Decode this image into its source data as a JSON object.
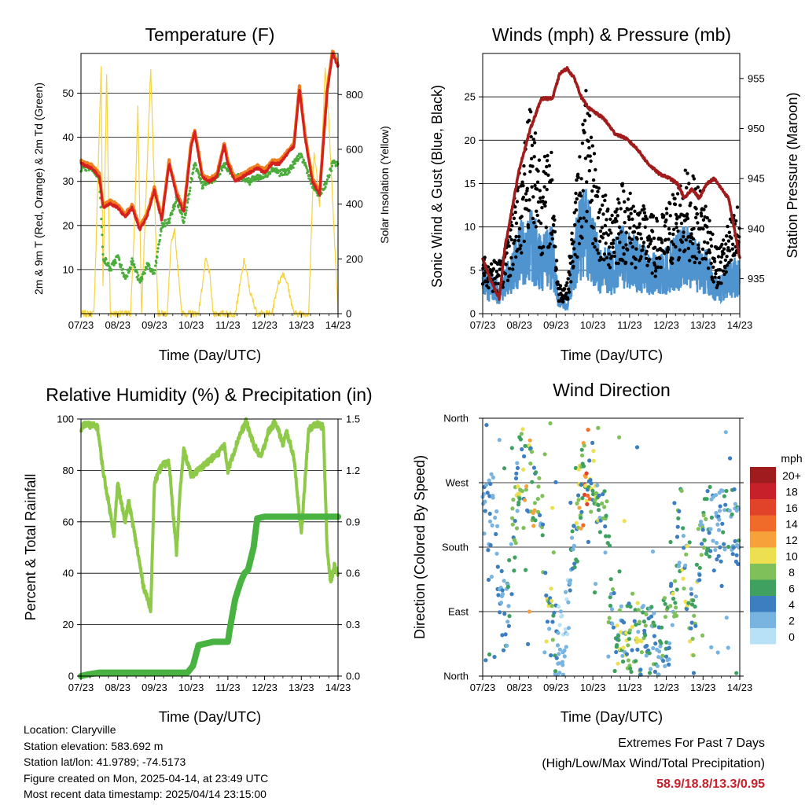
{
  "colors": {
    "temp2m": "#d42020",
    "temp9m": "#f07d1e",
    "dewpoint": "#4aac3a",
    "solar": "#f5d33f",
    "gust": "#000000",
    "wind": "#4f93cf",
    "pressure": "#a01c1c",
    "rh": "#8ec94a",
    "precip": "#48b341",
    "extremes": "#c8202a"
  },
  "time_ticks": [
    "07/23",
    "08/23",
    "09/23",
    "10/23",
    "11/23",
    "12/23",
    "13/23",
    "14/23"
  ],
  "xlabel": "Time (Day/UTC)",
  "charts": {
    "temperature": {
      "title": "Temperature (F)",
      "ylabel_left": "2m & 9m T (Red, Orange) & 2m Td (Green)",
      "ylabel_right": "Solar Insolation (Yellow)",
      "yticks_left": [
        "10",
        "20",
        "30",
        "40",
        "50"
      ],
      "yticks_right": [
        "0",
        "200",
        "400",
        "600",
        "800"
      ]
    },
    "winds": {
      "title": "Winds (mph) & Pressure (mb)",
      "ylabel_left": "Sonic Wind & Gust (Blue, Black)",
      "ylabel_right": "Station Pressure (Maroon)",
      "yticks_left": [
        "0",
        "5",
        "10",
        "15",
        "20",
        "25"
      ],
      "yticks_right": [
        "935",
        "940",
        "945",
        "950",
        "955"
      ]
    },
    "humidity": {
      "title": "Relative Humidity (%) & Precipitation (in)",
      "ylabel_left": "Percent & Total Rainfall",
      "yticks_left": [
        "0",
        "20",
        "40",
        "60",
        "80",
        "100"
      ],
      "yticks_right": [
        "0.0",
        "0.3",
        "0.6",
        "0.9",
        "1.2",
        "1.5"
      ]
    },
    "direction": {
      "title": "Wind Direction",
      "ylabel_left": "Direction (Colored By Speed)",
      "yticks_left": [
        "North",
        "East",
        "South",
        "West",
        "North"
      ],
      "legend_title": "mph",
      "legend_labels": [
        "20+",
        "18",
        "16",
        "14",
        "12",
        "10",
        "8",
        "6",
        "4",
        "2",
        "0"
      ],
      "legend_colors": [
        "#9e1b1e",
        "#c8202a",
        "#e0432a",
        "#f06a2a",
        "#f7a13c",
        "#ece050",
        "#7fc05a",
        "#3fa060",
        "#3c7ec0",
        "#79b4e0",
        "#b9e1f5"
      ]
    }
  },
  "chart_data": [
    {
      "type": "line",
      "title": "Temperature (F)",
      "x_domain_days": [
        7,
        14
      ],
      "ylim_left": [
        0,
        59
      ],
      "ylim_right": [
        0,
        950
      ],
      "series": [
        {
          "axis": "left",
          "x": [
            7.0,
            7.3,
            7.5,
            7.6,
            7.8,
            8.0,
            8.2,
            8.4,
            8.6,
            8.8,
            9.0,
            9.2,
            9.4,
            9.6,
            9.8,
            10.0,
            10.1,
            10.3,
            10.5,
            10.7,
            10.9,
            11.0,
            11.2,
            11.4,
            11.6,
            11.8,
            12.0,
            12.2,
            12.4,
            12.6,
            12.8,
            12.95,
            13.1,
            13.3,
            13.5,
            13.7,
            13.85,
            14.0
          ],
          "values": [
            34,
            33,
            31,
            24,
            25,
            24,
            22,
            24,
            19,
            22,
            28,
            21,
            34,
            27,
            23,
            38,
            41,
            31,
            30,
            31,
            38,
            34,
            30,
            31,
            32,
            33,
            32,
            34,
            34,
            36,
            38,
            51,
            40,
            30,
            27,
            50,
            59,
            56
          ]
        },
        {
          "axis": "left",
          "x": [
            7.0,
            7.3,
            7.5,
            7.55,
            7.6,
            7.8,
            8.0,
            8.2,
            8.4,
            8.6,
            8.8,
            9.0,
            9.2,
            9.4,
            9.6,
            9.8,
            10.0,
            10.1,
            10.3,
            10.5,
            10.7,
            10.9,
            11.0,
            11.2,
            11.4,
            11.6,
            11.8,
            12.0,
            12.2,
            12.4,
            12.6,
            12.8,
            12.95,
            13.1,
            13.3,
            13.5,
            13.7,
            13.85,
            14.0
          ],
          "values": [
            33,
            33,
            31,
            22,
            13,
            10,
            13,
            8,
            12,
            7,
            11,
            9,
            20,
            21,
            26,
            21,
            30,
            34,
            29,
            30,
            31,
            34,
            33,
            31,
            31,
            30,
            31,
            31,
            33,
            32,
            32,
            34,
            36,
            34,
            29,
            27,
            30,
            34,
            34
          ]
        },
        {
          "axis": "right",
          "x": [
            7.0,
            7.35,
            7.4,
            7.45,
            7.55,
            7.6,
            7.7,
            7.8,
            8.35,
            8.45,
            8.55,
            8.65,
            8.9,
            9.1,
            9.35,
            9.45,
            9.55,
            9.65,
            9.75,
            10.2,
            10.3,
            10.4,
            10.5,
            10.6,
            10.8,
            11.2,
            11.35,
            11.45,
            11.6,
            11.8,
            12.2,
            12.35,
            12.5,
            12.6,
            12.8,
            13.2,
            13.35,
            13.5,
            13.65,
            13.75,
            14.0
          ],
          "values": [
            0,
            0,
            200,
            450,
            900,
            100,
            870,
            0,
            0,
            300,
            750,
            0,
            900,
            0,
            0,
            250,
            300,
            150,
            0,
            0,
            100,
            200,
            150,
            0,
            0,
            0,
            120,
            200,
            80,
            0,
            0,
            100,
            150,
            120,
            0,
            0,
            600,
            400,
            900,
            700,
            0
          ]
        }
      ]
    },
    {
      "type": "scatter",
      "title": "Winds (mph) & Pressure (mb)",
      "x_domain_days": [
        7,
        14
      ],
      "ylim_left": [
        0,
        30
      ],
      "ylim_right": [
        931.5,
        957.5
      ],
      "series": [
        {
          "axis": "left",
          "x": [
            7.0,
            7.5,
            8.0,
            8.3,
            8.6,
            8.9,
            9.05,
            9.3,
            9.6,
            9.8,
            10.2,
            10.5,
            10.8,
            11.2,
            11.5,
            11.8,
            12.2,
            12.5,
            12.8,
            13.1,
            13.4,
            13.7,
            14.0
          ],
          "values": [
            4,
            3,
            8,
            10,
            7,
            8,
            2,
            1,
            10,
            12,
            6,
            6,
            8,
            7,
            6,
            5,
            7,
            8,
            7,
            6,
            3,
            5,
            5
          ]
        },
        {
          "axis": "left",
          "x": [
            7.0,
            7.5,
            8.0,
            8.3,
            8.6,
            8.9,
            9.05,
            9.3,
            9.6,
            9.8,
            10.2,
            10.5,
            10.8,
            11.2,
            11.5,
            11.8,
            12.2,
            12.5,
            12.8,
            13.1,
            13.4,
            13.7,
            14.0
          ],
          "values": [
            6,
            5,
            14,
            22,
            15,
            16,
            3,
            3,
            15,
            22,
            12,
            11,
            13,
            11,
            10,
            9,
            12,
            14,
            13,
            11,
            6,
            9,
            11
          ]
        },
        {
          "axis": "right",
          "x": [
            7.0,
            7.2,
            7.45,
            7.6,
            7.8,
            8.0,
            8.3,
            8.6,
            8.9,
            9.1,
            9.3,
            9.5,
            9.7,
            9.9,
            10.1,
            10.3,
            10.6,
            10.9,
            11.2,
            11.5,
            11.8,
            12.1,
            12.3,
            12.5,
            12.7,
            12.9,
            13.1,
            13.3,
            13.5,
            13.7,
            13.9,
            14.0
          ],
          "values": [
            937,
            935,
            933,
            938,
            942,
            946,
            950,
            953,
            953,
            955.5,
            956,
            955,
            953,
            952,
            951.5,
            951,
            949.5,
            949,
            948,
            946.5,
            945.5,
            945,
            944.5,
            943,
            944,
            943,
            944.5,
            945,
            944,
            943,
            939,
            937
          ]
        }
      ]
    },
    {
      "type": "line",
      "title": "Relative Humidity (%) & Precipitation (in)",
      "x_domain_days": [
        7,
        14
      ],
      "ylim_left": [
        0,
        100
      ],
      "ylim_right": [
        0,
        1.5
      ],
      "series": [
        {
          "axis": "left",
          "x": [
            7.0,
            7.1,
            7.45,
            7.6,
            7.9,
            8.0,
            8.2,
            8.3,
            8.5,
            8.7,
            8.9,
            9.0,
            9.2,
            9.4,
            9.6,
            9.7,
            9.8,
            10.0,
            10.2,
            10.5,
            10.7,
            10.9,
            11.0,
            11.3,
            11.5,
            11.7,
            11.9,
            12.1,
            12.3,
            12.5,
            12.6,
            12.8,
            13.0,
            13.2,
            13.4,
            13.6,
            13.7,
            13.8,
            13.9,
            14.0
          ],
          "values": [
            96,
            98,
            97,
            80,
            55,
            75,
            60,
            68,
            52,
            35,
            26,
            75,
            82,
            83,
            48,
            72,
            88,
            78,
            80,
            84,
            86,
            90,
            80,
            93,
            99,
            90,
            85,
            95,
            99,
            90,
            95,
            85,
            55,
            96,
            98,
            97,
            50,
            36,
            43,
            40
          ]
        },
        {
          "axis": "right",
          "x": [
            7.0,
            7.2,
            7.5,
            8.0,
            9.0,
            9.9,
            10.05,
            10.2,
            10.6,
            11.0,
            11.05,
            11.2,
            11.35,
            11.45,
            11.55,
            11.7,
            11.8,
            12.0,
            12.5,
            13.0,
            14.0
          ],
          "values": [
            0.0,
            0.01,
            0.02,
            0.02,
            0.02,
            0.02,
            0.06,
            0.18,
            0.2,
            0.2,
            0.27,
            0.45,
            0.55,
            0.6,
            0.62,
            0.75,
            0.92,
            0.93,
            0.93,
            0.93,
            0.93
          ]
        }
      ]
    },
    {
      "type": "scatter",
      "title": "Wind Direction",
      "x_domain_days": [
        7,
        14
      ],
      "ylim_degrees": [
        0,
        360
      ],
      "series": [
        {
          "name": "direction",
          "x": [
            7.0,
            7.3,
            7.6,
            8.0,
            8.3,
            8.6,
            8.9,
            9.2,
            9.5,
            9.8,
            10.0,
            10.3,
            10.6,
            10.9,
            11.2,
            11.5,
            11.8,
            12.1,
            12.4,
            12.7,
            13.0,
            13.3,
            13.6,
            13.9
          ],
          "values": [
            225,
            235,
            45,
            300,
            280,
            210,
            60,
            40,
            200,
            300,
            270,
            210,
            60,
            45,
            50,
            45,
            40,
            70,
            220,
            60,
            230,
            200,
            210,
            210
          ]
        }
      ]
    }
  ],
  "info": {
    "location": "Location: Claryville",
    "elevation": "Station elevation: 583.692 m",
    "latlon": "Station lat/lon: 41.9789; -74.5173",
    "created": "Figure created on Mon, 2025-04-14, at 23:49 UTC",
    "recent": "Most recent data timestamp: 2025/04/14 23:15:00"
  },
  "extremes": {
    "title": "Extremes For Past 7 Days",
    "subtitle": "(High/Low/Max Wind/Total Precipitation)",
    "values": "58.9/18.8/13.3/0.95"
  }
}
